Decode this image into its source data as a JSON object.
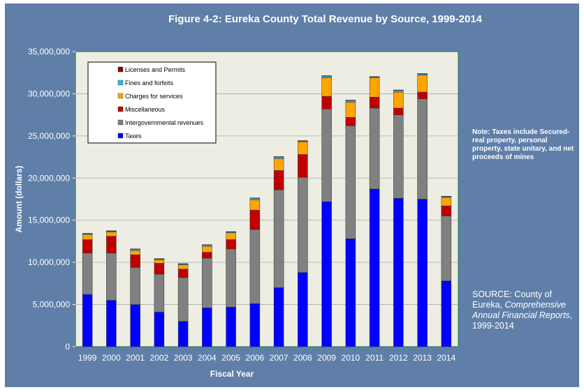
{
  "header": {
    "title": "Figure 4-2: Eureka County Total Revenue by Source, 1999-2014"
  },
  "note": "Note: Taxes include Secured-real property, personal property, state unitary, and net proceeds of mines",
  "source": {
    "prefix": "SOURCE: County of Eureka, ",
    "italic": "Comprehensive Annual Financial Reports",
    "suffix": ", 1999-2014"
  },
  "colors": {
    "background": "#5F7FA9",
    "plot": "#EEEDE3",
    "frame": "#1E7E3E"
  },
  "chart_data": {
    "type": "bar",
    "stacked": true,
    "title": "Figure 4-2: Eureka County Total Revenue by Source, 1999-2014",
    "xlabel": "Fiscal Year",
    "ylabel": "Amount (dollars)",
    "ylim": [
      0,
      35000000
    ],
    "yticks": [
      0,
      5000000,
      10000000,
      15000000,
      20000000,
      25000000,
      30000000,
      35000000
    ],
    "ytick_labels": [
      "0",
      "5,000,000",
      "10,000,000",
      "15,000,000",
      "20,000,000",
      "25,000,000",
      "30,000,000",
      "35,000,000"
    ],
    "grid": true,
    "legend_position": "top-left",
    "categories": [
      "1999",
      "2000",
      "2001",
      "2002",
      "2003",
      "2004",
      "2005",
      "2006",
      "2007",
      "2008",
      "2009",
      "2010",
      "2011",
      "2012",
      "2013",
      "2014"
    ],
    "series": [
      {
        "name": "Taxes",
        "color": "#0000FF",
        "values": [
          6200000,
          5500000,
          5000000,
          4100000,
          3000000,
          4600000,
          4700000,
          5100000,
          7000000,
          8800000,
          17200000,
          12800000,
          18700000,
          17600000,
          17500000,
          7800000
        ]
      },
      {
        "name": "Intergovernmental revenues",
        "color": "#808080",
        "values": [
          4900000,
          5600000,
          4400000,
          4500000,
          5200000,
          5900000,
          6900000,
          8800000,
          11600000,
          11300000,
          11000000,
          13400000,
          9600000,
          9900000,
          11900000,
          7700000
        ]
      },
      {
        "name": "Miscellaneous",
        "color": "#C00000",
        "values": [
          1600000,
          2000000,
          1500000,
          1300000,
          1000000,
          700000,
          1100000,
          2300000,
          2300000,
          2700000,
          1500000,
          1000000,
          1300000,
          800000,
          800000,
          1200000
        ]
      },
      {
        "name": "Charges for services",
        "color": "#FFA500",
        "values": [
          600000,
          500000,
          500000,
          400000,
          500000,
          700000,
          800000,
          1200000,
          1400000,
          1500000,
          2200000,
          1800000,
          2300000,
          1900000,
          2000000,
          1000000
        ]
      },
      {
        "name": "Fines and forfeits",
        "color": "#33B5E5",
        "values": [
          100000,
          100000,
          150000,
          100000,
          100000,
          150000,
          100000,
          200000,
          200000,
          100000,
          200000,
          200000,
          100000,
          200000,
          150000,
          100000
        ]
      },
      {
        "name": "Licenses and Permits",
        "color": "#8B0000",
        "values": [
          50000,
          50000,
          50000,
          50000,
          50000,
          50000,
          50000,
          50000,
          50000,
          50000,
          50000,
          50000,
          50000,
          50000,
          50000,
          50000
        ]
      }
    ],
    "legend_order": [
      "Licenses and Permits",
      "Fines and forfeits",
      "Charges for services",
      "Miscellaneous",
      "Intergovernmental revenues",
      "Taxes"
    ]
  }
}
